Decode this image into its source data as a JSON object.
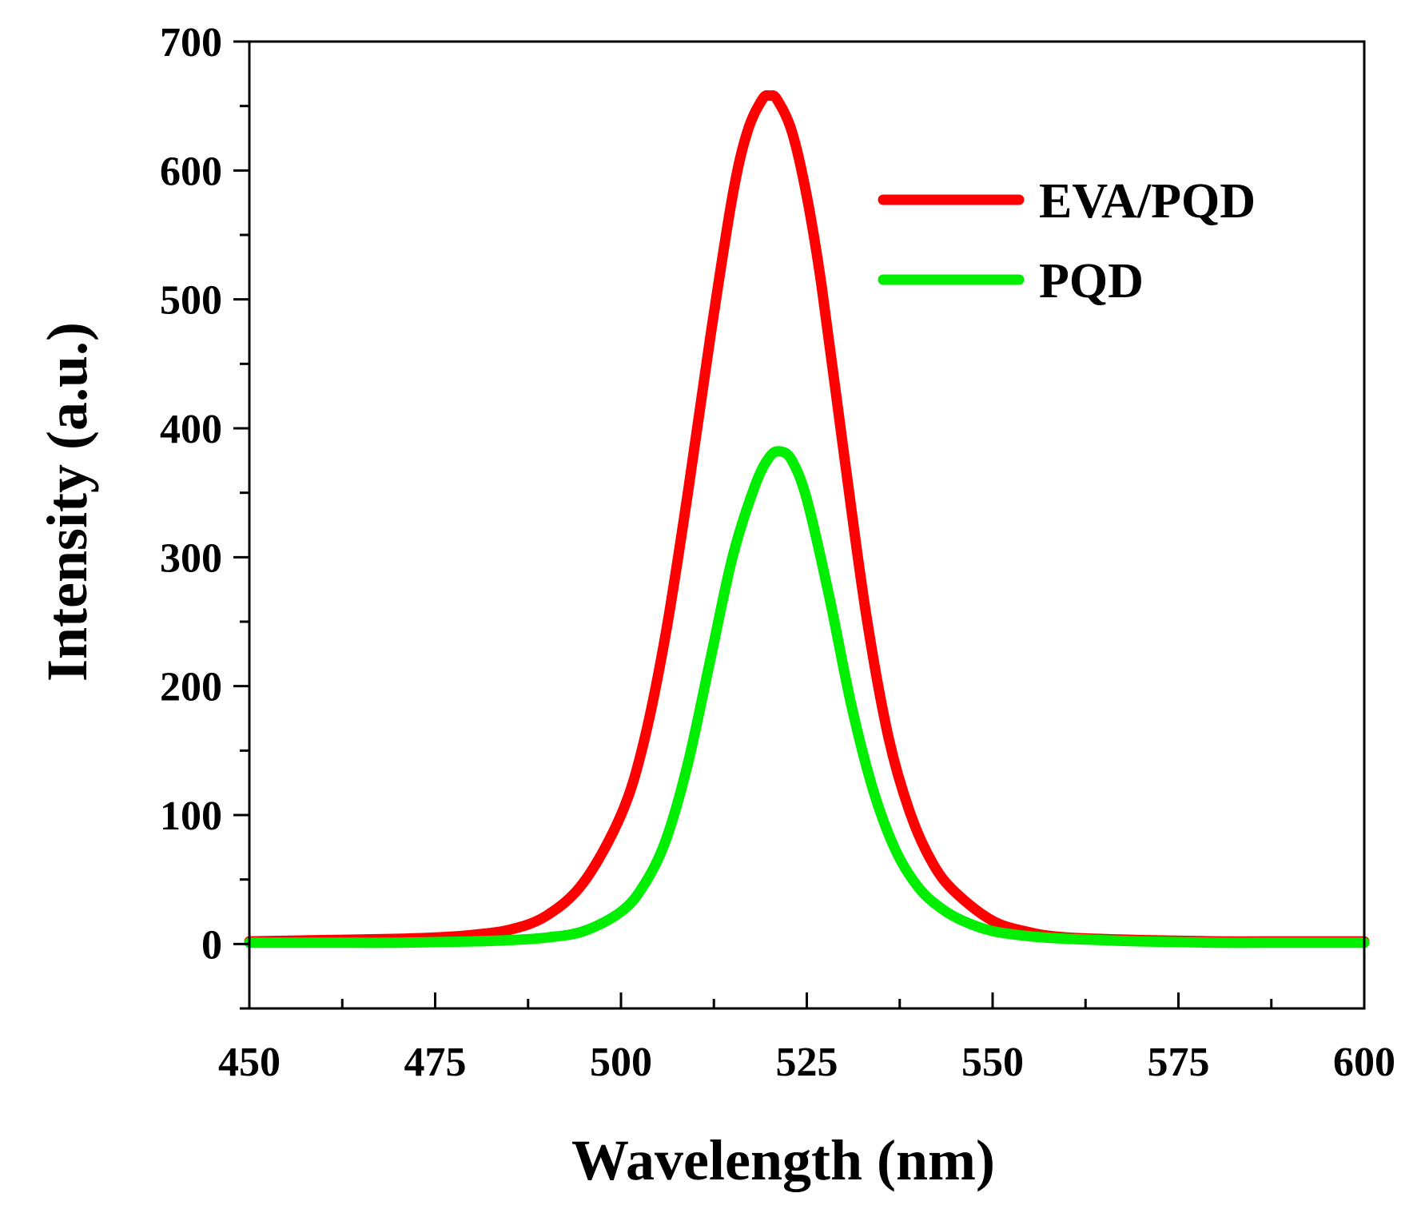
{
  "chart_data": {
    "type": "line",
    "title": "",
    "xlabel": "Wavelength (nm)",
    "ylabel": "Intensity (a.u.)",
    "xlim": [
      450,
      600
    ],
    "ylim": [
      -50,
      700
    ],
    "x_ticks": [
      450,
      475,
      500,
      525,
      550,
      575,
      600
    ],
    "x_tick_labels": [
      "450",
      "475",
      "500",
      "525",
      "550",
      "575",
      "600"
    ],
    "y_ticks": [
      0,
      100,
      200,
      300,
      400,
      500,
      600,
      700
    ],
    "y_tick_labels": [
      "0",
      "100",
      "200",
      "300",
      "400",
      "500",
      "600",
      "700"
    ],
    "legend_position": "top-right",
    "series": [
      {
        "name": "EVA/PQD",
        "color": "#ff0000",
        "x": [
          450,
          460,
          470,
          475,
          480,
          485,
          490,
          495,
          500,
          503,
          506,
          509,
          512,
          515,
          517,
          519,
          520,
          521,
          523,
          525,
          527,
          530,
          533,
          536,
          539,
          542,
          545,
          550,
          555,
          560,
          570,
          580,
          590,
          600
        ],
        "y": [
          2,
          3,
          4,
          5,
          7,
          11,
          22,
          48,
          100,
          155,
          240,
          350,
          470,
          580,
          630,
          655,
          658,
          655,
          630,
          580,
          510,
          380,
          255,
          160,
          100,
          62,
          40,
          18,
          9,
          5,
          3,
          2,
          2,
          2
        ]
      },
      {
        "name": "PQD",
        "color": "#00ee00",
        "x": [
          450,
          460,
          470,
          480,
          485,
          490,
          495,
          500,
          503,
          506,
          509,
          512,
          515,
          518,
          520,
          521.5,
          523,
          525,
          528,
          531,
          534,
          537,
          540,
          543,
          546,
          550,
          555,
          560,
          570,
          580,
          590,
          600
        ],
        "y": [
          1,
          1,
          1,
          2,
          3,
          5,
          10,
          25,
          45,
          80,
          140,
          220,
          300,
          355,
          378,
          382,
          375,
          345,
          270,
          185,
          118,
          72,
          44,
          28,
          18,
          10,
          6,
          4,
          2,
          1,
          1,
          1
        ]
      }
    ]
  }
}
